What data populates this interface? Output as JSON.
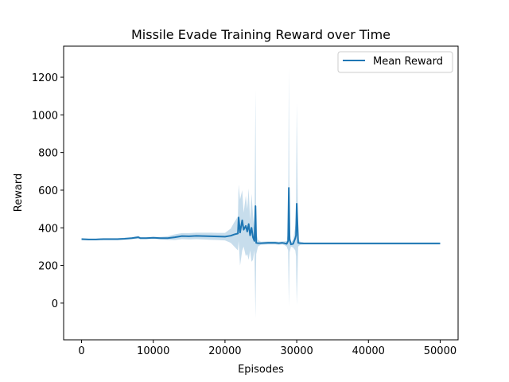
{
  "chart_data": {
    "type": "line",
    "title": "Missile Evade Training Reward over Time",
    "xlabel": "Episodes",
    "ylabel": "Reward",
    "xlim": [
      -2500,
      52500
    ],
    "ylim": [
      -195,
      1365
    ],
    "xticks": [
      0,
      10000,
      20000,
      30000,
      40000,
      50000
    ],
    "yticks": [
      0,
      200,
      400,
      600,
      800,
      1000,
      1200
    ],
    "grid": false,
    "legend_position": "upper right",
    "colors": {
      "line": "#1f77b4",
      "band": "#1f77b4"
    },
    "series": [
      {
        "name": "Mean Reward",
        "x": [
          0,
          1000,
          2000,
          3000,
          4000,
          5000,
          6000,
          7000,
          7900,
          8200,
          9000,
          10000,
          11000,
          12000,
          13000,
          14000,
          15000,
          16000,
          17000,
          18000,
          19000,
          20000,
          20800,
          21300,
          21800,
          21900,
          22100,
          22400,
          22600,
          22900,
          23100,
          23300,
          23500,
          23700,
          23900,
          24100,
          24250,
          24350,
          24600,
          25000,
          26000,
          27000,
          27500,
          28000,
          28300,
          28600,
          28800,
          28900,
          29000,
          29200,
          29500,
          29800,
          29900,
          30000,
          30200,
          30500,
          31000,
          35000,
          40000,
          45000,
          50000
        ],
        "y": [
          340,
          338,
          338,
          340,
          340,
          340,
          342,
          345,
          350,
          345,
          345,
          347,
          345,
          345,
          350,
          356,
          355,
          357,
          356,
          355,
          354,
          353,
          358,
          365,
          370,
          455,
          375,
          440,
          390,
          410,
          380,
          420,
          360,
          400,
          350,
          330,
          515,
          320,
          318,
          318,
          320,
          320,
          318,
          320,
          318,
          315,
          330,
          612,
          340,
          312,
          315,
          345,
          360,
          528,
          320,
          318,
          317,
          317,
          317,
          317,
          317
        ],
        "lower": [
          335,
          334,
          334,
          335,
          335,
          335,
          337,
          340,
          343,
          340,
          340,
          342,
          338,
          336,
          335,
          340,
          338,
          340,
          338,
          336,
          335,
          333,
          320,
          300,
          280,
          330,
          200,
          280,
          300,
          250,
          260,
          230,
          280,
          220,
          230,
          280,
          -80,
          260,
          300,
          310,
          312,
          312,
          310,
          312,
          308,
          300,
          280,
          -15,
          270,
          300,
          295,
          280,
          250,
          -10,
          300,
          310,
          312,
          312,
          312,
          312,
          312
        ],
        "upper": [
          345,
          342,
          342,
          345,
          345,
          345,
          347,
          350,
          357,
          350,
          350,
          352,
          352,
          355,
          365,
          372,
          372,
          374,
          374,
          374,
          373,
          373,
          396,
          430,
          460,
          630,
          550,
          600,
          480,
          570,
          500,
          610,
          440,
          580,
          470,
          380,
          1130,
          380,
          336,
          326,
          328,
          328,
          326,
          328,
          328,
          330,
          380,
          1245,
          410,
          324,
          335,
          410,
          470,
          1065,
          340,
          326,
          322,
          322,
          322,
          322,
          322
        ]
      }
    ]
  }
}
